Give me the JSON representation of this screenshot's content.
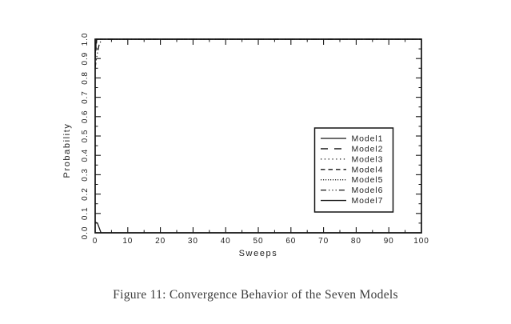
{
  "page": {
    "background": "#ffffff"
  },
  "figure": {
    "caption": "Figure 11: Convergence Behavior of the Seven Models"
  },
  "colors": {
    "foreground": "#141414",
    "text": "#222222",
    "caption_text": "#3c3c3c",
    "legend_fill": "#ffffff"
  },
  "chart_data": {
    "type": "line",
    "title": "",
    "xlabel": "Sweeps",
    "ylabel": "Probability",
    "xlim": [
      0,
      100
    ],
    "ylim": [
      0.0,
      1.0
    ],
    "grid": false,
    "legend_position": "inside-middle-right",
    "x_major_ticks": [
      0,
      10,
      20,
      30,
      40,
      50,
      60,
      70,
      80,
      90,
      100
    ],
    "x_tick_labels": [
      "0",
      "10",
      "20",
      "30",
      "40",
      "50",
      "60",
      "70",
      "80",
      "90",
      "100"
    ],
    "x_minor_step": 5,
    "y_major_ticks": [
      0.0,
      0.1,
      0.2,
      0.3,
      0.4,
      0.5,
      0.6,
      0.7,
      0.8,
      0.9,
      1.0
    ],
    "y_tick_labels": [
      "0.0",
      "0.1",
      "0.2",
      "0.3",
      "0.4",
      "0.5",
      "0.6",
      "0.7",
      "0.8",
      "0.9",
      "1.0"
    ],
    "y_minor_step": 0.05,
    "series": [
      {
        "name": "Model1",
        "linestyle": "solid",
        "x": [
          0,
          0.4,
          100
        ],
        "y": [
          0.93,
          1.0,
          1.0
        ]
      },
      {
        "name": "Model2",
        "linestyle": "long-dash",
        "x": [
          0,
          0.4,
          100
        ],
        "y": [
          0.92,
          1.0,
          1.0
        ]
      },
      {
        "name": "Model3",
        "linestyle": "dotted",
        "x": [
          0,
          0.45,
          100
        ],
        "y": [
          0.94,
          1.0,
          1.0
        ]
      },
      {
        "name": "Model4",
        "linestyle": "dash",
        "x": [
          0,
          0.5,
          100
        ],
        "y": [
          0.9,
          1.0,
          1.0
        ]
      },
      {
        "name": "Model5",
        "linestyle": "dense-dot",
        "x": [
          0,
          0.5,
          100
        ],
        "y": [
          0.93,
          1.0,
          1.0
        ]
      },
      {
        "name": "Model6",
        "linestyle": "dash-dot-dot",
        "x": [
          0,
          0.3,
          0.7,
          1.2,
          2.0,
          100
        ],
        "y": [
          0.85,
          0.89,
          0.93,
          0.97,
          1.0,
          1.0
        ]
      },
      {
        "name": "Model7",
        "linestyle": "solid",
        "x": [
          0,
          0.7,
          1.8,
          100
        ],
        "y": [
          0.055,
          0.05,
          0.0,
          0.0
        ]
      }
    ]
  }
}
